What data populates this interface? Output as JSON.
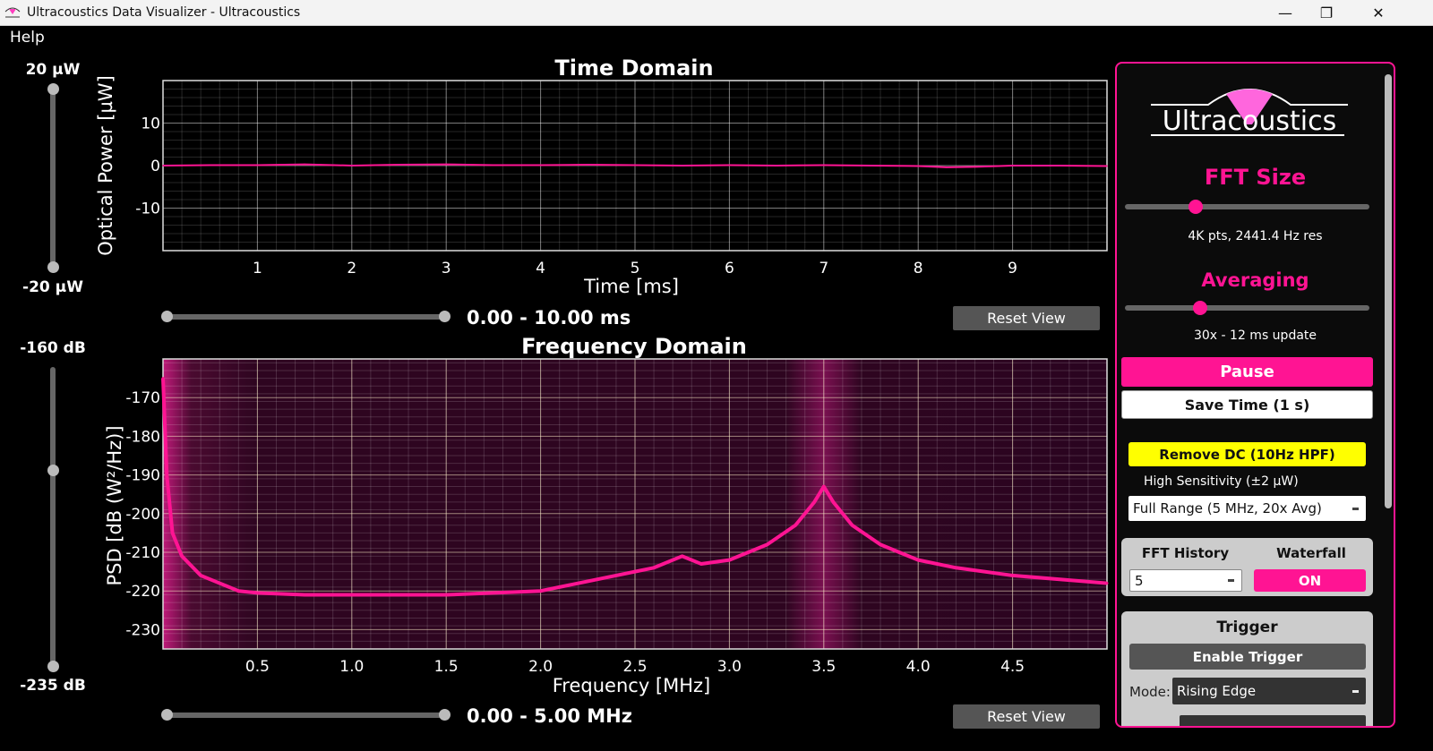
{
  "window": {
    "title": "Ultracoustics Data Visualizer - Ultracoustics",
    "controls": [
      "minimize",
      "restore",
      "close"
    ]
  },
  "menu": {
    "items": [
      "Help"
    ]
  },
  "time_slider": {
    "max_label": "20 µW",
    "min_label": "-20 µW"
  },
  "freq_slider": {
    "max_label": "-160 dB",
    "min_label": "-235 dB",
    "value_fraction": 0.35
  },
  "time_plot": {
    "title": "Time Domain",
    "range_label": "0.00 - 10.00 ms",
    "reset_label": "Reset View"
  },
  "freq_plot": {
    "title": "Frequency Domain",
    "range_label": "0.00 - 5.00 MHz",
    "reset_label": "Reset View"
  },
  "chart_data": [
    {
      "type": "line",
      "title": "Time Domain",
      "xlabel": "Time [ms]",
      "ylabel": "Optical Power [µW]",
      "xlim": [
        0,
        10
      ],
      "ylim": [
        -20,
        20
      ],
      "xticks": [
        "1",
        "2",
        "3",
        "4",
        "5",
        "6",
        "7",
        "8",
        "9"
      ],
      "yticks": [
        "10",
        "0",
        "-10"
      ],
      "grid": true,
      "color": "#ff1493",
      "x": [
        0,
        0.5,
        1,
        1.5,
        2,
        2.5,
        3,
        3.5,
        4,
        4.5,
        5,
        5.5,
        6,
        6.5,
        7,
        7.5,
        8,
        8.3,
        8.6,
        9,
        9.5,
        10
      ],
      "y": [
        0,
        0.1,
        0.1,
        0.3,
        0,
        0.2,
        0.3,
        0.1,
        0.1,
        0.2,
        0.1,
        0,
        0.1,
        0,
        0.1,
        0,
        -0.1,
        -0.4,
        -0.3,
        0,
        0,
        -0.1
      ]
    },
    {
      "type": "line",
      "title": "Frequency Domain",
      "xlabel": "Frequency [MHz]",
      "ylabel": "PSD [dB (W²/Hz)]",
      "xlim": [
        0,
        5
      ],
      "ylim": [
        -235,
        -160
      ],
      "xticks": [
        "0.5",
        "1.0",
        "1.5",
        "2.0",
        "2.5",
        "3.0",
        "3.5",
        "4.0",
        "4.5"
      ],
      "yticks": [
        "-170",
        "-180",
        "-190",
        "-200",
        "-210",
        "-220",
        "-230"
      ],
      "grid": true,
      "color": "#ff1493",
      "x": [
        0.0,
        0.02,
        0.05,
        0.1,
        0.2,
        0.3,
        0.4,
        0.5,
        0.75,
        1.0,
        1.25,
        1.5,
        1.75,
        2.0,
        2.2,
        2.4,
        2.6,
        2.75,
        2.85,
        3.0,
        3.2,
        3.35,
        3.45,
        3.5,
        3.55,
        3.65,
        3.8,
        4.0,
        4.2,
        4.5,
        4.75,
        5.0
      ],
      "y": [
        -165,
        -190,
        -205,
        -211,
        -216,
        -218,
        -220,
        -220.5,
        -221,
        -221,
        -221,
        -221,
        -220.5,
        -220,
        -218,
        -216,
        -214,
        -211,
        -213,
        -212,
        -208,
        -203,
        -197,
        -193,
        -197,
        -203,
        -208,
        -212,
        -214,
        -216,
        -217,
        -218
      ]
    }
  ],
  "panel": {
    "logo_text": "Ultracoustics",
    "fft_size": {
      "title": "FFT Size",
      "value_fraction": 0.29,
      "info": "4K pts, 2441.4 Hz res"
    },
    "averaging": {
      "title": "Averaging",
      "value_fraction": 0.31,
      "info": "30x - 12 ms update"
    },
    "pause_label": "Pause",
    "save_label": "Save Time (1 s)",
    "remove_dc_label": "Remove DC (10Hz HPF)",
    "sensitivity_label": "High Sensitivity (±2 µW)",
    "mode_select": "Full Range (5 MHz, 20x Avg)",
    "fft_history_label": "FFT History",
    "fft_history_value": "5",
    "waterfall_label": "Waterfall",
    "waterfall_value": "ON",
    "trigger": {
      "title": "Trigger",
      "enable_label": "Enable Trigger",
      "mode_label": "Mode:",
      "mode_value": "Rising Edge"
    }
  },
  "colors": {
    "accent": "#ff1493",
    "remove_dc": "#ffff00",
    "panel_bg": "#0b0b0b"
  }
}
